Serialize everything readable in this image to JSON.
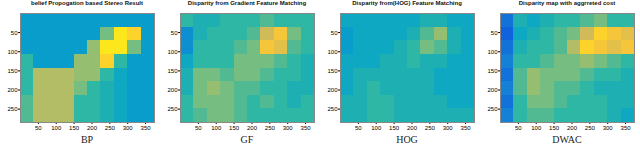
{
  "chart_data": [
    {
      "type": "heatmap",
      "title": "belief Propogation based Stereo Result",
      "caption": "BP",
      "xlim": [
        0,
        375
      ],
      "ylim": [
        0,
        285
      ],
      "xticks": [
        50,
        100,
        150,
        200,
        250,
        300,
        350
      ],
      "yticks": [
        50,
        100,
        150,
        200,
        250
      ],
      "color_range": [
        0,
        1
      ],
      "cells": [
        [
          0.35,
          0.35,
          0.35,
          0.35,
          0.35,
          0.35,
          0.35,
          0.35,
          0.35,
          0.35
        ],
        [
          0.35,
          0.35,
          0.35,
          0.35,
          0.35,
          0.35,
          0.6,
          0.95,
          0.9,
          0.35
        ],
        [
          0.35,
          0.35,
          0.35,
          0.35,
          0.35,
          0.65,
          0.95,
          0.95,
          0.6,
          0.35
        ],
        [
          0.5,
          0.35,
          0.35,
          0.35,
          0.65,
          0.65,
          0.9,
          0.5,
          0.35,
          0.35
        ],
        [
          0.5,
          0.7,
          0.7,
          0.7,
          0.65,
          0.65,
          0.5,
          0.4,
          0.35,
          0.35
        ],
        [
          0.5,
          0.7,
          0.7,
          0.7,
          0.6,
          0.5,
          0.45,
          0.4,
          0.35,
          0.35
        ],
        [
          0.55,
          0.7,
          0.7,
          0.7,
          0.5,
          0.5,
          0.45,
          0.4,
          0.35,
          0.35
        ],
        [
          0.55,
          0.7,
          0.7,
          0.7,
          0.5,
          0.5,
          0.45,
          0.4,
          0.35,
          0.35
        ]
      ]
    },
    {
      "type": "heatmap",
      "title": "Disparity from Gradient Feature Matching",
      "caption": "GF",
      "xlim": [
        0,
        375
      ],
      "ylim": [
        0,
        285
      ],
      "xticks": [
        50,
        100,
        150,
        200,
        250,
        300,
        350
      ],
      "yticks": [
        50,
        100,
        150,
        200,
        250
      ],
      "color_range": [
        0,
        1
      ],
      "cells": [
        [
          0.5,
          0.45,
          0.45,
          0.5,
          0.5,
          0.5,
          0.55,
          0.5,
          0.5,
          0.5
        ],
        [
          0.3,
          0.45,
          0.5,
          0.5,
          0.5,
          0.55,
          0.75,
          0.85,
          0.6,
          0.5
        ],
        [
          0.3,
          0.5,
          0.5,
          0.5,
          0.55,
          0.6,
          0.85,
          0.8,
          0.55,
          0.5
        ],
        [
          0.4,
          0.5,
          0.5,
          0.5,
          0.6,
          0.6,
          0.6,
          0.55,
          0.5,
          0.45
        ],
        [
          0.45,
          0.6,
          0.6,
          0.55,
          0.6,
          0.6,
          0.55,
          0.5,
          0.5,
          0.45
        ],
        [
          0.45,
          0.6,
          0.65,
          0.6,
          0.55,
          0.55,
          0.5,
          0.5,
          0.45,
          0.45
        ],
        [
          0.5,
          0.6,
          0.6,
          0.6,
          0.55,
          0.5,
          0.55,
          0.5,
          0.45,
          0.5
        ],
        [
          0.5,
          0.55,
          0.6,
          0.6,
          0.55,
          0.5,
          0.5,
          0.5,
          0.5,
          0.5
        ]
      ]
    },
    {
      "type": "heatmap",
      "title": "Disparity from(HOG) Feature Matching",
      "caption": "HOG",
      "xlim": [
        0,
        375
      ],
      "ylim": [
        0,
        285
      ],
      "xticks": [
        50,
        100,
        150,
        200,
        250,
        300,
        350
      ],
      "yticks": [
        50,
        100,
        150,
        200,
        250
      ],
      "color_range": [
        0,
        1
      ],
      "cells": [
        [
          0.4,
          0.4,
          0.4,
          0.4,
          0.4,
          0.4,
          0.45,
          0.45,
          0.4,
          0.4
        ],
        [
          0.35,
          0.4,
          0.4,
          0.4,
          0.4,
          0.45,
          0.55,
          0.65,
          0.45,
          0.4
        ],
        [
          0.35,
          0.4,
          0.4,
          0.4,
          0.45,
          0.5,
          0.6,
          0.55,
          0.45,
          0.4
        ],
        [
          0.4,
          0.4,
          0.4,
          0.45,
          0.45,
          0.5,
          0.45,
          0.45,
          0.4,
          0.4
        ],
        [
          0.4,
          0.45,
          0.45,
          0.45,
          0.45,
          0.45,
          0.45,
          0.4,
          0.4,
          0.4
        ],
        [
          0.4,
          0.45,
          0.5,
          0.45,
          0.45,
          0.45,
          0.45,
          0.4,
          0.4,
          0.4
        ],
        [
          0.45,
          0.45,
          0.5,
          0.5,
          0.45,
          0.45,
          0.45,
          0.45,
          0.4,
          0.4
        ],
        [
          0.45,
          0.45,
          0.5,
          0.5,
          0.45,
          0.45,
          0.45,
          0.45,
          0.45,
          0.45
        ]
      ]
    },
    {
      "type": "heatmap",
      "title": "Disparity map with aggrreted cost",
      "caption": "DWAC",
      "xlim": [
        0,
        375
      ],
      "ylim": [
        0,
        285
      ],
      "xticks": [
        50,
        100,
        150,
        200,
        250,
        300,
        350
      ],
      "yticks": [
        50,
        100,
        150,
        200,
        250
      ],
      "color_range": [
        0,
        1
      ],
      "cells": [
        [
          0.2,
          0.45,
          0.4,
          0.45,
          0.5,
          0.5,
          0.55,
          0.6,
          0.5,
          0.5
        ],
        [
          0.15,
          0.4,
          0.45,
          0.5,
          0.55,
          0.6,
          0.75,
          0.9,
          0.85,
          0.8
        ],
        [
          0.2,
          0.45,
          0.5,
          0.5,
          0.55,
          0.7,
          0.9,
          0.85,
          0.8,
          0.85
        ],
        [
          0.25,
          0.5,
          0.5,
          0.55,
          0.6,
          0.6,
          0.65,
          0.6,
          0.55,
          0.5
        ],
        [
          0.2,
          0.55,
          0.65,
          0.6,
          0.6,
          0.6,
          0.55,
          0.5,
          0.5,
          0.45
        ],
        [
          0.25,
          0.55,
          0.65,
          0.6,
          0.55,
          0.55,
          0.5,
          0.45,
          0.45,
          0.45
        ],
        [
          0.2,
          0.5,
          0.6,
          0.6,
          0.55,
          0.5,
          0.5,
          0.5,
          0.45,
          0.45
        ],
        [
          0.25,
          0.5,
          0.55,
          0.55,
          0.5,
          0.5,
          0.5,
          0.5,
          0.45,
          0.4
        ]
      ]
    }
  ]
}
